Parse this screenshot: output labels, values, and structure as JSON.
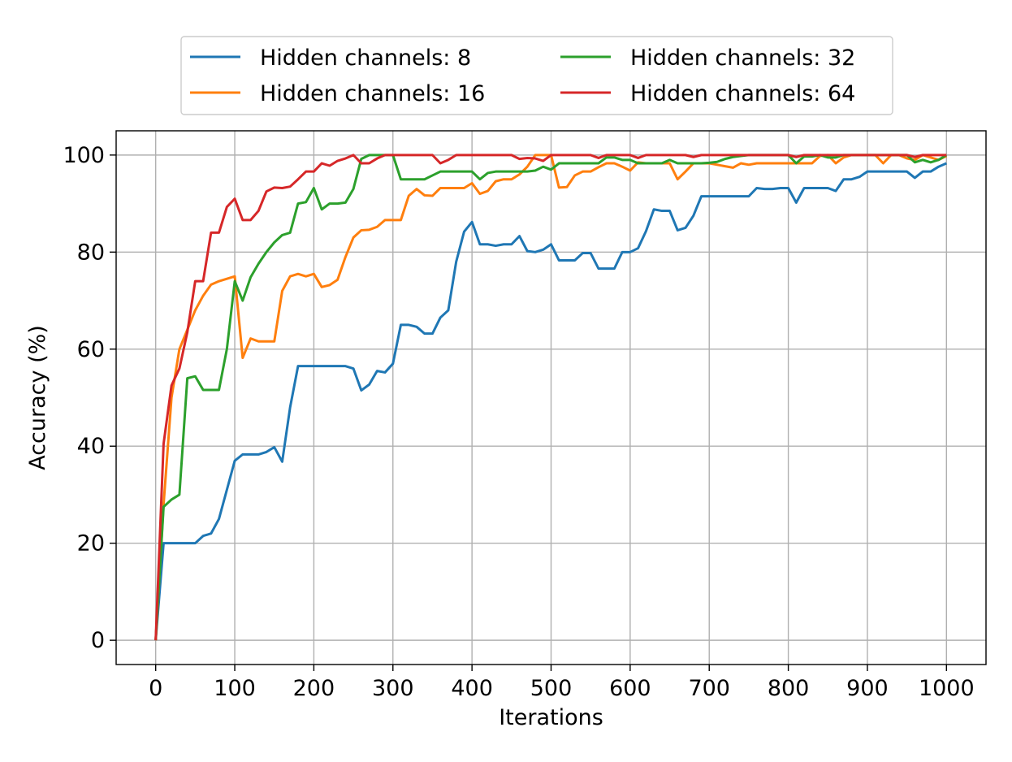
{
  "chart_data": {
    "type": "line",
    "title": "",
    "xlabel": "Iterations",
    "ylabel": "Accuracy (%)",
    "xlim": [
      -50,
      1050
    ],
    "ylim": [
      -5,
      105
    ],
    "x_ticks": [
      0,
      100,
      200,
      300,
      400,
      500,
      600,
      700,
      800,
      900,
      1000
    ],
    "y_ticks": [
      0,
      20,
      40,
      60,
      80,
      100
    ],
    "grid": true,
    "legend_position": "top-center, outside plot, 2 columns",
    "x": [
      0,
      10,
      20,
      30,
      40,
      50,
      60,
      70,
      80,
      90,
      100,
      110,
      120,
      130,
      140,
      150,
      160,
      170,
      180,
      190,
      200,
      210,
      220,
      230,
      240,
      250,
      260,
      270,
      280,
      290,
      300,
      310,
      320,
      330,
      340,
      350,
      360,
      370,
      380,
      390,
      400,
      410,
      420,
      430,
      440,
      450,
      460,
      470,
      480,
      490,
      500,
      510,
      520,
      530,
      540,
      550,
      560,
      570,
      580,
      590,
      600,
      610,
      620,
      630,
      640,
      650,
      660,
      670,
      680,
      690,
      700,
      710,
      720,
      730,
      740,
      750,
      760,
      770,
      780,
      790,
      800,
      810,
      820,
      830,
      840,
      850,
      860,
      870,
      880,
      890,
      900,
      910,
      920,
      930,
      940,
      950,
      960,
      970,
      980,
      990,
      1000
    ],
    "series": [
      {
        "name": "Hidden channels: 8",
        "color": "#1f77b4",
        "values": [
          0,
          20,
          20,
          20,
          20,
          20,
          21.5,
          22,
          25,
          31,
          37,
          38.3,
          38.3,
          38.3,
          38.8,
          39.8,
          36.8,
          48,
          56.5,
          56.5,
          56.5,
          56.5,
          56.5,
          56.5,
          56.5,
          56,
          51.5,
          52.7,
          55.5,
          55.2,
          57,
          65,
          65,
          64.6,
          63.2,
          63.2,
          66.5,
          68,
          78,
          84.2,
          86.2,
          81.6,
          81.6,
          81.3,
          81.6,
          81.6,
          83.3,
          80.2,
          80,
          80.5,
          81.6,
          78.3,
          78.3,
          78.3,
          79.8,
          79.8,
          76.6,
          76.6,
          76.6,
          80,
          80,
          80.8,
          84.3,
          88.8,
          88.5,
          88.5,
          84.5,
          85,
          87.5,
          91.5,
          91.5,
          91.5,
          91.5,
          91.5,
          91.5,
          91.5,
          93.2,
          93,
          93,
          93.2,
          93.2,
          90.2,
          93.2,
          93.2,
          93.2,
          93.2,
          92.6,
          95,
          95,
          95.5,
          96.6,
          96.6,
          96.6,
          96.6,
          96.6,
          96.6,
          95.3,
          96.6,
          96.6,
          97.6,
          98.3
        ]
      },
      {
        "name": "Hidden channels: 16",
        "color": "#ff7f0e",
        "values": [
          0,
          28,
          50,
          60,
          64,
          68,
          71,
          73.3,
          74,
          74.5,
          75,
          58.2,
          62.2,
          61.6,
          61.6,
          61.6,
          72,
          75,
          75.5,
          75,
          75.5,
          72.8,
          73.2,
          74.3,
          79,
          83,
          84.5,
          84.6,
          85.2,
          86.6,
          86.6,
          86.6,
          91.6,
          93,
          91.7,
          91.6,
          93.2,
          93.2,
          93.2,
          93.2,
          94.2,
          92,
          92.6,
          94.6,
          95,
          95,
          96,
          97.6,
          100,
          100,
          100,
          93.3,
          93.4,
          95.8,
          96.6,
          96.6,
          97.5,
          98.3,
          98.3,
          97.6,
          96.8,
          98.5,
          98.3,
          98.3,
          98.3,
          98.3,
          95,
          96.6,
          98.3,
          98.3,
          98.3,
          98,
          97.7,
          97.4,
          98.3,
          98,
          98.3,
          98.3,
          98.3,
          98.3,
          98.3,
          98.3,
          98.3,
          98.3,
          99.8,
          100,
          98.3,
          99.5,
          100,
          100,
          100,
          100,
          98.3,
          100,
          100,
          99.3,
          99,
          100,
          99.5,
          99,
          99.8
        ]
      },
      {
        "name": "Hidden channels: 32",
        "color": "#2ca02c",
        "values": [
          0,
          27.5,
          29,
          30,
          54,
          54.4,
          51.6,
          51.6,
          51.6,
          60,
          74,
          70,
          74.8,
          77.6,
          80,
          82,
          83.5,
          84,
          90,
          90.3,
          93.2,
          88.8,
          90,
          90,
          90.2,
          93,
          99.2,
          100,
          100,
          100,
          100,
          95,
          95,
          95,
          95,
          95.8,
          96.6,
          96.6,
          96.6,
          96.6,
          96.6,
          95,
          96.3,
          96.6,
          96.6,
          96.6,
          96.6,
          96.6,
          96.8,
          97.6,
          97,
          98.3,
          98.3,
          98.3,
          98.3,
          98.3,
          98.3,
          99.5,
          99.5,
          99,
          99,
          98.3,
          98.3,
          98.3,
          98.3,
          99,
          98.3,
          98.3,
          98.3,
          98.3,
          98.4,
          98.6,
          99.2,
          99.6,
          99.8,
          100,
          100,
          100,
          100,
          100,
          100,
          98.3,
          99.7,
          99.7,
          100,
          99.5,
          99.5,
          100,
          100,
          100,
          100,
          100,
          100,
          100,
          100,
          100,
          98.5,
          99,
          98.5,
          99,
          100
        ]
      },
      {
        "name": "Hidden channels: 64",
        "color": "#d62728",
        "values": [
          0,
          40.5,
          52.5,
          56,
          63.5,
          74,
          74,
          84,
          84,
          89.3,
          91,
          86.6,
          86.6,
          88.5,
          92.5,
          93.3,
          93.2,
          93.5,
          95,
          96.6,
          96.6,
          98.3,
          97.8,
          98.8,
          99.3,
          100,
          98.3,
          98.3,
          99.3,
          100,
          100,
          100,
          100,
          100,
          100,
          100,
          98.3,
          99,
          100,
          100,
          100,
          100,
          100,
          100,
          100,
          100,
          99.2,
          99.4,
          99.3,
          98.8,
          100,
          100,
          100,
          100,
          100,
          100,
          99.4,
          100,
          100,
          100,
          100,
          99.4,
          100,
          100,
          100,
          100,
          100,
          100,
          99.6,
          100,
          100,
          100,
          100,
          100,
          100,
          100,
          100,
          100,
          100,
          100,
          100,
          99.6,
          100,
          100,
          100,
          100,
          100,
          100,
          100,
          100,
          100,
          100,
          100,
          100,
          100,
          100,
          99.6,
          100,
          100,
          100,
          100
        ]
      }
    ]
  }
}
